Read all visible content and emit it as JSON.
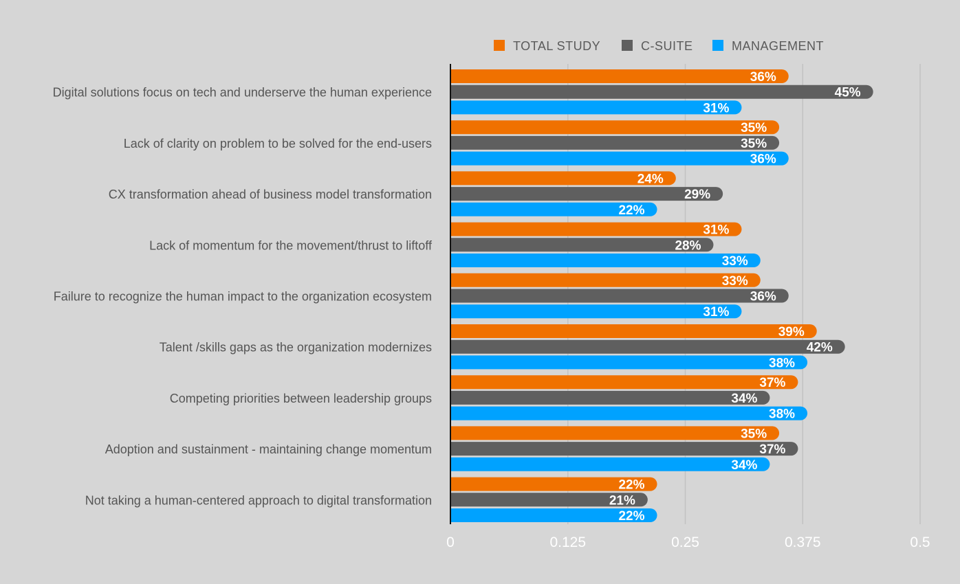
{
  "chart_data": {
    "type": "bar",
    "orientation": "horizontal",
    "categories": [
      "Digital solutions focus on tech and underserve the human experience",
      "Lack of clarity on problem to be solved for the end-users",
      "CX transformation ahead of business model transformation",
      "Lack of momentum for the movement/thrust to liftoff",
      "Failure to recognize the human impact to the organization ecosystem",
      "Talent /skills gaps as the organization modernizes",
      "Competing priorities between leadership groups",
      "Adoption and sustainment - maintaining change momentum",
      "Not taking a human-centered approach to digital transformation"
    ],
    "series": [
      {
        "name": "TOTAL STUDY",
        "color": "#f07100",
        "values": [
          0.36,
          0.35,
          0.24,
          0.31,
          0.33,
          0.39,
          0.37,
          0.35,
          0.22
        ],
        "labels": [
          "36%",
          "35%",
          "24%",
          "31%",
          "33%",
          "39%",
          "37%",
          "35%",
          "22%"
        ]
      },
      {
        "name": "C-SUITE",
        "color": "#5f5f5f",
        "values": [
          0.45,
          0.35,
          0.29,
          0.28,
          0.36,
          0.42,
          0.34,
          0.37,
          0.21
        ],
        "labels": [
          "45%",
          "35%",
          "29%",
          "28%",
          "36%",
          "42%",
          "34%",
          "37%",
          "21%"
        ]
      },
      {
        "name": "MANAGEMENT",
        "color": "#00a2ff",
        "values": [
          0.31,
          0.36,
          0.22,
          0.33,
          0.31,
          0.38,
          0.38,
          0.34,
          0.22
        ],
        "labels": [
          "31%",
          "36%",
          "22%",
          "33%",
          "31%",
          "38%",
          "38%",
          "34%",
          "22%"
        ]
      }
    ],
    "xlim": [
      0,
      0.5
    ],
    "xticks": [
      0,
      0.125,
      0.25,
      0.375,
      0.5
    ],
    "xtick_labels": [
      "0",
      "0.125",
      "0.25",
      "0.375",
      "0.5"
    ],
    "grid": "vertical",
    "legend": "top-right",
    "title": "",
    "xlabel": "",
    "ylabel": ""
  }
}
